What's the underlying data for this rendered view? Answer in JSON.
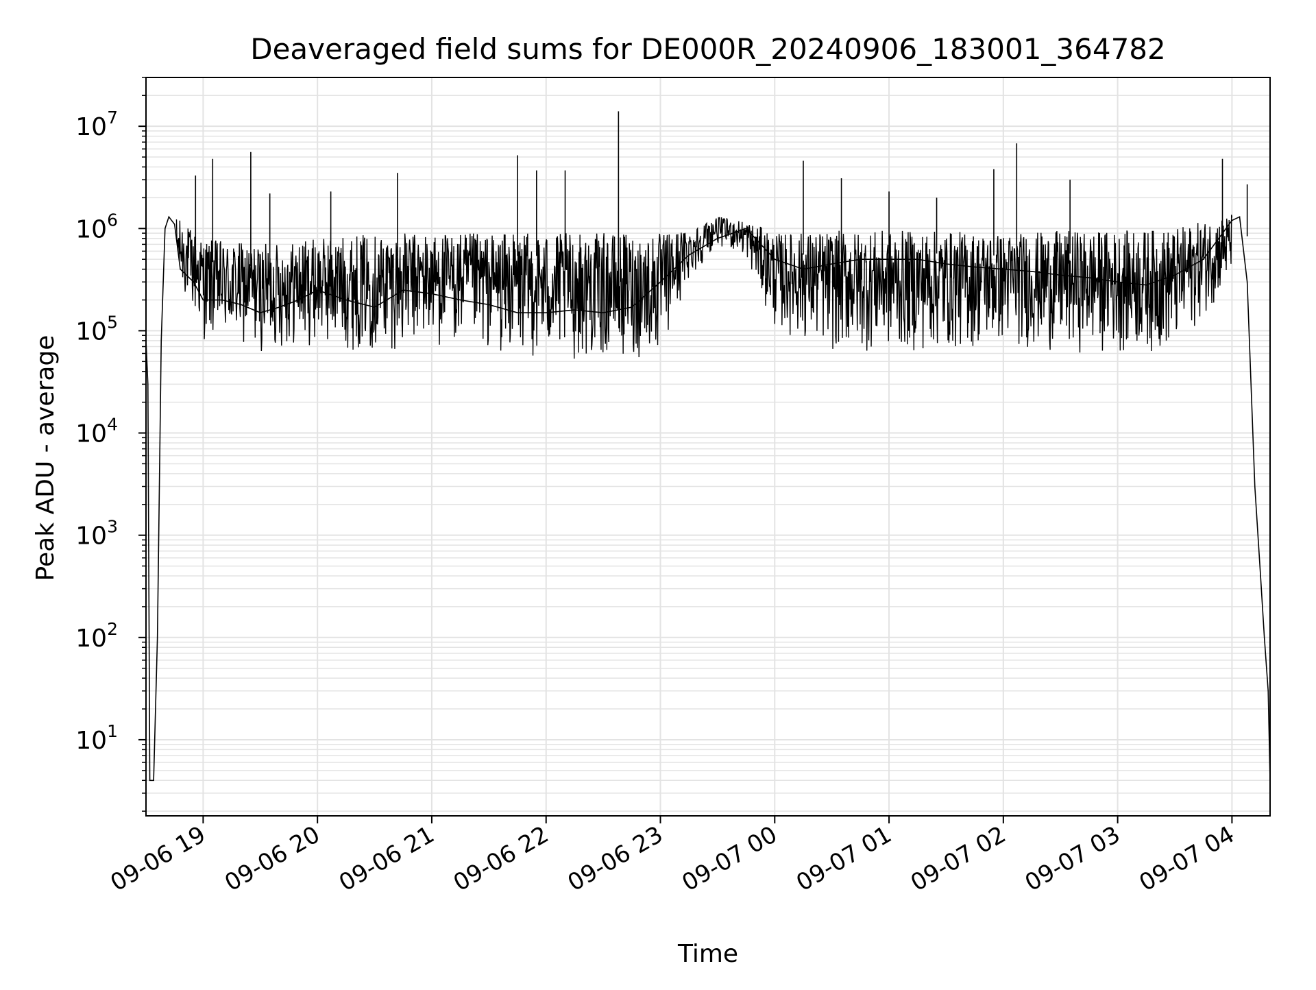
{
  "chart_data": {
    "type": "line",
    "title": "Deaveraged field sums for DE000R_20240906_183001_364782",
    "xlabel": "Time",
    "ylabel": "Peak ADU - average",
    "yscale": "log",
    "ylim": [
      1.8,
      30000000
    ],
    "xlim": [
      "2024-09-06 18:30",
      "2024-09-07 04:20"
    ],
    "grid": true,
    "line_color": "#000000",
    "grid_color": "#e3e3e3",
    "x_ticks": [
      {
        "t": "2024-09-06 19:00",
        "label": "09-06 19"
      },
      {
        "t": "2024-09-06 20:00",
        "label": "09-06 20"
      },
      {
        "t": "2024-09-06 21:00",
        "label": "09-06 21"
      },
      {
        "t": "2024-09-06 22:00",
        "label": "09-06 22"
      },
      {
        "t": "2024-09-06 23:00",
        "label": "09-06 23"
      },
      {
        "t": "2024-09-07 00:00",
        "label": "09-07 00"
      },
      {
        "t": "2024-09-07 01:00",
        "label": "09-07 01"
      },
      {
        "t": "2024-09-07 02:00",
        "label": "09-07 02"
      },
      {
        "t": "2024-09-07 03:00",
        "label": "09-07 03"
      },
      {
        "t": "2024-09-07 04:00",
        "label": "09-07 04"
      }
    ],
    "y_ticks": [
      {
        "v": 10,
        "base": "10",
        "exp": "1"
      },
      {
        "v": 100,
        "base": "10",
        "exp": "2"
      },
      {
        "v": 1000,
        "base": "10",
        "exp": "3"
      },
      {
        "v": 10000,
        "base": "10",
        "exp": "4"
      },
      {
        "v": 100000,
        "base": "10",
        "exp": "5"
      },
      {
        "v": 1000000,
        "base": "10",
        "exp": "6"
      },
      {
        "v": 10000000,
        "base": "10",
        "exp": "7"
      }
    ],
    "series": [
      {
        "x": [
          "2024-09-06 18:30",
          "2024-09-06 18:31",
          "2024-09-06 18:32",
          "2024-09-06 18:33",
          "2024-09-06 18:34",
          "2024-09-06 18:36",
          "2024-09-06 18:38",
          "2024-09-06 18:40",
          "2024-09-06 18:42",
          "2024-09-06 18:45",
          "2024-09-06 18:48",
          "2024-09-06 18:55",
          "2024-09-06 19:00",
          "2024-09-06 19:10",
          "2024-09-06 19:20",
          "2024-09-06 19:30",
          "2024-09-06 19:40",
          "2024-09-06 19:50",
          "2024-09-06 20:00",
          "2024-09-06 20:15",
          "2024-09-06 20:30",
          "2024-09-06 20:45",
          "2024-09-06 21:00",
          "2024-09-06 21:15",
          "2024-09-06 21:30",
          "2024-09-06 21:45",
          "2024-09-06 22:00",
          "2024-09-06 22:15",
          "2024-09-06 22:30",
          "2024-09-06 22:45",
          "2024-09-06 23:00",
          "2024-09-06 23:15",
          "2024-09-06 23:30",
          "2024-09-06 23:45",
          "2024-09-07 00:00",
          "2024-09-07 00:15",
          "2024-09-07 00:30",
          "2024-09-07 00:45",
          "2024-09-07 01:00",
          "2024-09-07 01:15",
          "2024-09-07 01:30",
          "2024-09-07 01:45",
          "2024-09-07 02:00",
          "2024-09-07 02:15",
          "2024-09-07 02:30",
          "2024-09-07 02:45",
          "2024-09-07 03:00",
          "2024-09-07 03:15",
          "2024-09-07 03:30",
          "2024-09-07 03:45",
          "2024-09-07 04:00",
          "2024-09-07 04:04",
          "2024-09-07 04:08",
          "2024-09-07 04:12",
          "2024-09-07 04:15",
          "2024-09-07 04:17",
          "2024-09-07 04:19",
          "2024-09-07 04:20"
        ],
        "y": [
          80000,
          30000,
          4,
          4,
          4,
          100,
          80000,
          1000000,
          1300000,
          1100000,
          400000,
          300000,
          200000,
          200000,
          180000,
          150000,
          170000,
          200000,
          250000,
          200000,
          170000,
          250000,
          230000,
          200000,
          180000,
          150000,
          150000,
          160000,
          150000,
          170000,
          300000,
          550000,
          800000,
          1000000,
          500000,
          400000,
          450000,
          500000,
          500000,
          500000,
          450000,
          420000,
          400000,
          380000,
          350000,
          330000,
          300000,
          280000,
          350000,
          500000,
          1200000,
          1300000,
          300000,
          3000,
          400,
          100,
          30,
          4
        ],
        "band": {
          "x": [
            "2024-09-06 18:46",
            "2024-09-06 19:00",
            "2024-09-06 19:30",
            "2024-09-06 20:00",
            "2024-09-06 20:30",
            "2024-09-06 21:00",
            "2024-09-06 21:30",
            "2024-09-06 22:00",
            "2024-09-06 22:30",
            "2024-09-06 23:00",
            "2024-09-06 23:15",
            "2024-09-06 23:30",
            "2024-09-06 23:45",
            "2024-09-07 00:00",
            "2024-09-07 00:30",
            "2024-09-07 01:00",
            "2024-09-07 01:30",
            "2024-09-07 02:00",
            "2024-09-07 02:30",
            "2024-09-07 03:00",
            "2024-09-07 03:30",
            "2024-09-07 04:00"
          ],
          "low": [
            300000,
            80000,
            60000,
            70000,
            60000,
            70000,
            60000,
            50000,
            50000,
            50000,
            300000,
            700000,
            500000,
            100000,
            60000,
            60000,
            60000,
            70000,
            60000,
            60000,
            60000,
            300000
          ],
          "high": [
            1300000,
            800000,
            700000,
            800000,
            900000,
            900000,
            900000,
            900000,
            900000,
            900000,
            1000000,
            1300000,
            1200000,
            900000,
            950000,
            950000,
            950000,
            900000,
            950000,
            950000,
            1000000,
            1400000
          ]
        },
        "spikes": [
          {
            "t": "2024-09-06 18:56",
            "v": 3300000
          },
          {
            "t": "2024-09-06 19:05",
            "v": 4800000
          },
          {
            "t": "2024-09-06 19:25",
            "v": 5600000
          },
          {
            "t": "2024-09-06 19:35",
            "v": 2200000
          },
          {
            "t": "2024-09-06 20:07",
            "v": 2300000
          },
          {
            "t": "2024-09-06 20:42",
            "v": 3500000
          },
          {
            "t": "2024-09-06 21:45",
            "v": 5200000
          },
          {
            "t": "2024-09-06 21:55",
            "v": 3700000
          },
          {
            "t": "2024-09-06 22:10",
            "v": 3700000
          },
          {
            "t": "2024-09-06 22:38",
            "v": 14000000
          },
          {
            "t": "2024-09-07 00:15",
            "v": 4600000
          },
          {
            "t": "2024-09-07 00:35",
            "v": 3100000
          },
          {
            "t": "2024-09-07 01:00",
            "v": 2300000
          },
          {
            "t": "2024-09-07 01:25",
            "v": 2000000
          },
          {
            "t": "2024-09-07 01:55",
            "v": 3800000
          },
          {
            "t": "2024-09-07 02:07",
            "v": 6800000
          },
          {
            "t": "2024-09-07 02:35",
            "v": 3000000
          },
          {
            "t": "2024-09-07 03:55",
            "v": 4800000
          },
          {
            "t": "2024-09-07 04:08",
            "v": 2700000
          }
        ]
      }
    ]
  }
}
